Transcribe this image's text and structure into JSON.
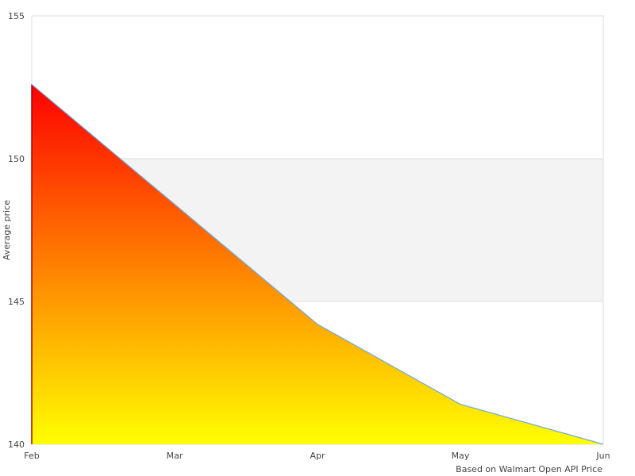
{
  "chart_data": {
    "type": "area",
    "title": "",
    "xlabel": "Based on Walmart Open API Price",
    "ylabel": "Average price",
    "categories": [
      "Feb",
      "Mar",
      "Apr",
      "May",
      "Jun"
    ],
    "series": [
      {
        "values": [
          152.6,
          148.4,
          144.2,
          141.4,
          140.0
        ]
      }
    ],
    "ylim": [
      140,
      155
    ],
    "yticks": [
      "140",
      "145",
      "150",
      "155"
    ],
    "grid": "alternating horizontal bands",
    "legend": "none",
    "colors": {
      "line": "#6fa8dc",
      "fill_top": "#ff0000",
      "fill_bottom": "#ffff00",
      "band": "#f3f3f3",
      "border": "#dddddd"
    }
  }
}
